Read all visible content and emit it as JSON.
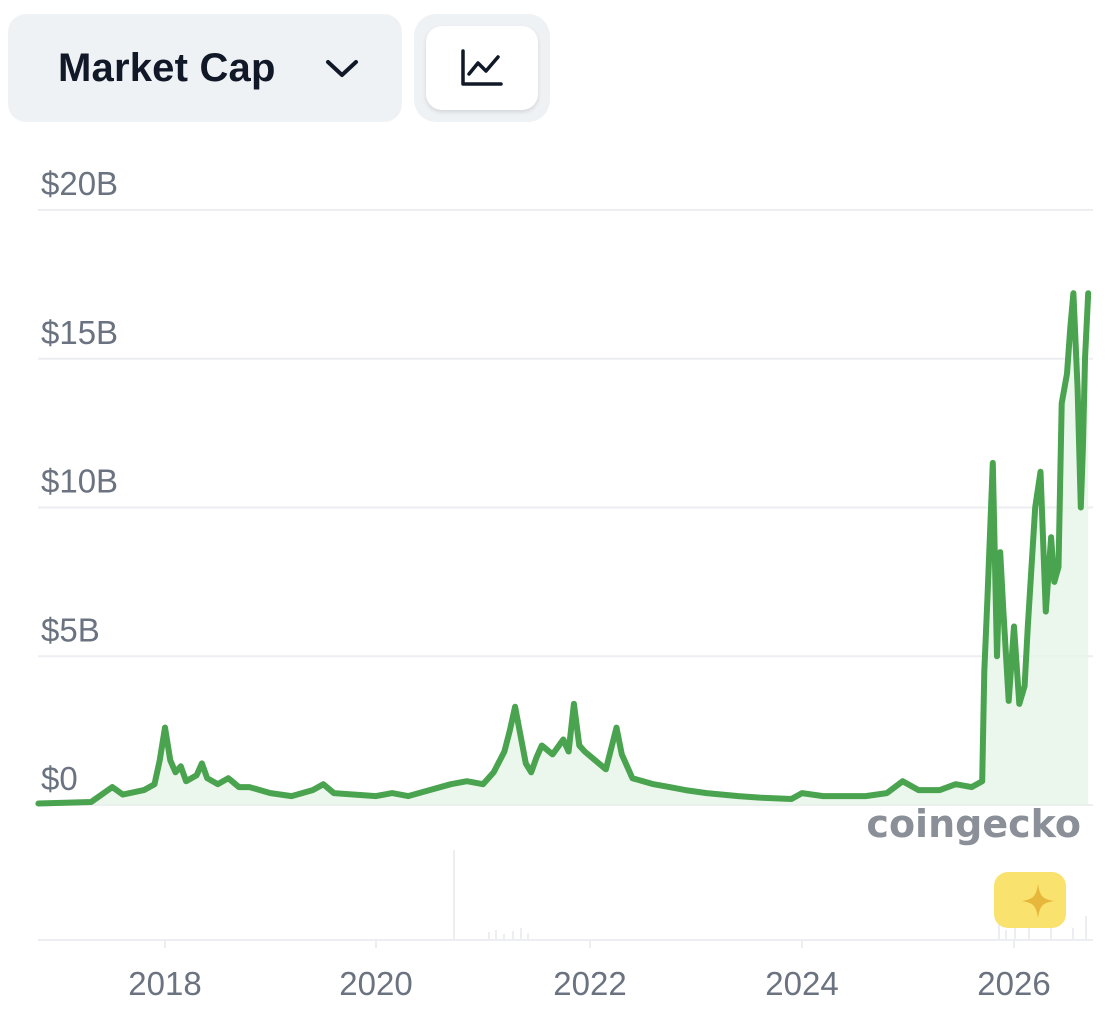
{
  "toolbar": {
    "metric_label": "Market Cap",
    "metric_chevron_icon": "chevron-down-icon",
    "chart_type_icon": "line-chart-icon"
  },
  "watermark": {
    "text": "coingecko",
    "badge_icon": "sparkle-icon"
  },
  "colors": {
    "line": "#4aa34e",
    "area": "#e6f5e7",
    "grid": "#eceef1",
    "tick_text": "#6b7280",
    "badge": "#f9e26d",
    "badge_star": "#e6b73a"
  },
  "chart_data": {
    "type": "line",
    "title": "",
    "xlabel": "",
    "ylabel": "",
    "x_ticks": [
      "2018",
      "2020",
      "2022",
      "2024",
      "2026"
    ],
    "y_ticks": [
      "$0",
      "$5B",
      "$10B",
      "$15B",
      "$20B"
    ],
    "y_tick_values": [
      0,
      5,
      10,
      15,
      20
    ],
    "ylim": [
      0,
      20
    ],
    "xlim": [
      2016.8,
      2026.7
    ],
    "y_unit": "billion USD",
    "grid": true,
    "legend": "none",
    "series": [
      {
        "x": [
          2016.8,
          2017.3,
          2017.5,
          2017.6,
          2017.8,
          2017.9,
          2017.95,
          2018.0,
          2018.05,
          2018.1,
          2018.15,
          2018.2,
          2018.3,
          2018.35,
          2018.4,
          2018.5,
          2018.6,
          2018.7,
          2018.8,
          2018.9,
          2019.0,
          2019.2,
          2019.4,
          2019.5,
          2019.6,
          2019.8,
          2020.0,
          2020.15,
          2020.3,
          2020.5,
          2020.7,
          2020.85,
          2021.0,
          2021.1,
          2021.2,
          2021.25,
          2021.3,
          2021.4,
          2021.45,
          2021.5,
          2021.55,
          2021.65,
          2021.75,
          2021.8,
          2021.85,
          2021.9,
          2021.95,
          2022.05,
          2022.15,
          2022.25,
          2022.3,
          2022.35,
          2022.4,
          2022.5,
          2022.6,
          2022.75,
          2022.9,
          2023.1,
          2023.4,
          2023.6,
          2023.9,
          2024.0,
          2024.2,
          2024.4,
          2024.6,
          2024.8,
          2024.95,
          2025.1,
          2025.3,
          2025.45,
          2025.6,
          2025.7,
          2025.72,
          2025.75,
          2025.8,
          2025.84,
          2025.87,
          2025.9,
          2025.95,
          2026.0,
          2026.05,
          2026.1,
          2026.13,
          2026.2,
          2026.25,
          2026.3,
          2026.35,
          2026.38,
          2026.42,
          2026.45,
          2026.5,
          2026.53,
          2026.56,
          2026.6,
          2026.63,
          2026.65,
          2026.67,
          2026.7
        ],
        "values": [
          0.05,
          0.1,
          0.6,
          0.35,
          0.5,
          0.7,
          1.5,
          2.6,
          1.5,
          1.1,
          1.3,
          0.8,
          1.0,
          1.4,
          0.9,
          0.7,
          0.9,
          0.6,
          0.6,
          0.5,
          0.4,
          0.3,
          0.5,
          0.7,
          0.4,
          0.35,
          0.3,
          0.4,
          0.3,
          0.5,
          0.7,
          0.8,
          0.7,
          1.1,
          1.8,
          2.5,
          3.3,
          1.4,
          1.1,
          1.6,
          2.0,
          1.7,
          2.2,
          1.8,
          3.4,
          2.0,
          1.8,
          1.5,
          1.2,
          2.6,
          1.7,
          1.3,
          0.9,
          0.8,
          0.7,
          0.6,
          0.5,
          0.4,
          0.3,
          0.25,
          0.2,
          0.4,
          0.3,
          0.3,
          0.3,
          0.4,
          0.8,
          0.5,
          0.5,
          0.7,
          0.6,
          0.8,
          4.5,
          7.0,
          11.5,
          5.0,
          8.5,
          6.5,
          3.5,
          6.0,
          3.4,
          4.0,
          6.0,
          10.0,
          11.2,
          6.5,
          9.0,
          7.5,
          8.0,
          13.5,
          14.5,
          16.0,
          17.2,
          14.0,
          10.0,
          12.0,
          15.0,
          17.2
        ]
      }
    ]
  }
}
